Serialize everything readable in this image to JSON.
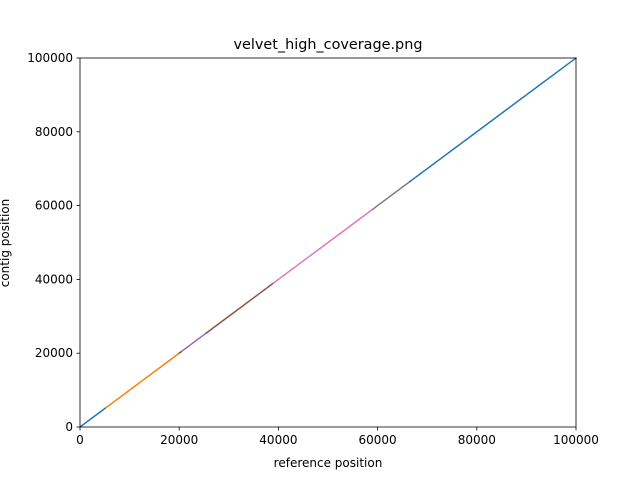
{
  "chart_data": {
    "type": "line",
    "title": "velvet_high_coverage.png",
    "xlabel": "reference position",
    "ylabel": "contig position",
    "xlim": [
      0,
      100000
    ],
    "ylim": [
      0,
      100000
    ],
    "xticks": [
      0,
      20000,
      40000,
      60000,
      80000,
      100000
    ],
    "yticks": [
      0,
      20000,
      40000,
      60000,
      80000,
      100000
    ],
    "xtick_labels": [
      "0",
      "20000",
      "40000",
      "60000",
      "80000",
      "100000"
    ],
    "ytick_labels": [
      "0",
      "20000",
      "40000",
      "60000",
      "80000",
      "100000"
    ],
    "grid": false,
    "legend": "none",
    "series": [
      {
        "color": "#1f77b4",
        "x": [
          0,
          5200
        ],
        "y": [
          0,
          5200
        ]
      },
      {
        "color": "#ff7f0e",
        "x": [
          5200,
          20000
        ],
        "y": [
          5200,
          20000
        ]
      },
      {
        "color": "#2ca02c",
        "x": [
          20000,
          20300
        ],
        "y": [
          20000,
          20300
        ]
      },
      {
        "color": "#d62728",
        "x": [
          20300,
          20500
        ],
        "y": [
          20300,
          20500
        ]
      },
      {
        "color": "#9467bd",
        "x": [
          20500,
          25500
        ],
        "y": [
          20500,
          25500
        ]
      },
      {
        "color": "#8c564b",
        "x": [
          25500,
          39000
        ],
        "y": [
          25500,
          39000
        ]
      },
      {
        "color": "#e377c2",
        "x": [
          39000,
          59000
        ],
        "y": [
          39000,
          59000
        ]
      },
      {
        "color": "#7f7f7f",
        "x": [
          59000,
          66500
        ],
        "y": [
          59000,
          66500
        ]
      },
      {
        "color": "#1f77b4",
        "x": [
          66500,
          100000
        ],
        "y": [
          66500,
          100000
        ]
      }
    ]
  }
}
